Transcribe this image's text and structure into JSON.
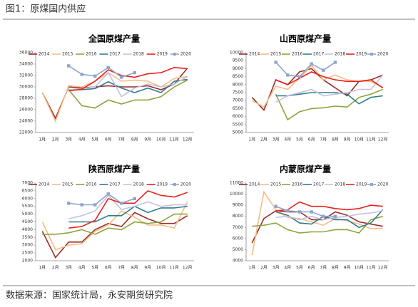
{
  "header": {
    "title": "图1：原煤国内供应"
  },
  "footer": {
    "source": "数据来源：国家统计局，永安期货研究院"
  },
  "chart_data": [
    {
      "type": "line",
      "title": "全国原煤产量",
      "categories": [
        "1月",
        "2月",
        "3月",
        "4月",
        "5月",
        "6月",
        "7月",
        "8月",
        "9月",
        "10月",
        "11月",
        "12月"
      ],
      "ylim": [
        22000,
        36000
      ],
      "yticks": [
        22000,
        24000,
        26000,
        28000,
        30000,
        32000,
        34000,
        36000
      ],
      "series": [
        {
          "name": "2014",
          "color": "#9b2d2a",
          "values": [
            29000,
            24500,
            30000,
            29800,
            30000,
            30200,
            30000,
            30000,
            30200,
            29500,
            30500,
            33300
          ]
        },
        {
          "name": "2015",
          "color": "#f5bd85",
          "values": [
            29000,
            24000,
            30200,
            30000,
            31000,
            32500,
            31000,
            31200,
            31000,
            30000,
            31500,
            31800
          ]
        },
        {
          "name": "2016",
          "color": "#8ea43a",
          "values": [
            null,
            null,
            29500,
            26700,
            26300,
            27700,
            27000,
            27700,
            27700,
            28300,
            30000,
            31200
          ]
        },
        {
          "name": "2017",
          "color": "#2e7d8c",
          "values": [
            null,
            null,
            29500,
            29500,
            29700,
            30900,
            29800,
            29000,
            29800,
            29000,
            31000,
            31300
          ]
        },
        {
          "name": "2018",
          "color": "#c6bfe0",
          "values": [
            null,
            null,
            29500,
            29700,
            30000,
            32500,
            28300,
            29800,
            30500,
            30000,
            30500,
            31800
          ]
        },
        {
          "name": "2019",
          "color": "#e8201c",
          "values": [
            null,
            null,
            29300,
            29600,
            31000,
            33000,
            32000,
            31700,
            32300,
            32500,
            33400,
            33200
          ]
        },
        {
          "name": "2020",
          "color": "#8fa3cc",
          "marker": "square",
          "values": [
            null,
            null,
            33700,
            32200,
            31900,
            33400,
            31700,
            32500,
            null,
            null,
            null,
            null
          ]
        }
      ]
    },
    {
      "type": "line",
      "title": "山西原煤产量",
      "categories": [
        "1月",
        "2月",
        "3月",
        "4月",
        "5月",
        "6月",
        "7月",
        "8月",
        "9月",
        "10月",
        "11月",
        "12月"
      ],
      "ylim": [
        5000,
        10000
      ],
      "yticks": [
        5000,
        5500,
        6000,
        6500,
        7000,
        7500,
        8000,
        8500,
        9000,
        9500,
        10000
      ],
      "series": [
        {
          "name": "2014",
          "color": "#9b2d2a",
          "values": [
            7200,
            6400,
            8300,
            8000,
            8800,
            9000,
            8300,
            7800,
            7300,
            8200,
            8300,
            8600
          ]
        },
        {
          "name": "2015",
          "color": "#f5bd85",
          "values": [
            7000,
            6600,
            7900,
            7700,
            8400,
            9200,
            8300,
            8600,
            8300,
            8200,
            8200,
            7800
          ]
        },
        {
          "name": "2016",
          "color": "#8ea43a",
          "values": [
            null,
            null,
            7400,
            5800,
            6300,
            6500,
            6550,
            6650,
            6600,
            7200,
            7400,
            7700
          ]
        },
        {
          "name": "2017",
          "color": "#2e7d8c",
          "values": [
            null,
            null,
            7300,
            7300,
            7400,
            7500,
            7500,
            7500,
            7400,
            6800,
            7200,
            7300
          ]
        },
        {
          "name": "2018",
          "color": "#c6bfe0",
          "values": [
            null,
            null,
            6900,
            7300,
            7500,
            7700,
            7300,
            7400,
            7500,
            7700,
            7700,
            8600
          ]
        },
        {
          "name": "2019",
          "color": "#e8201c",
          "values": [
            null,
            null,
            8300,
            8000,
            8400,
            8800,
            8500,
            8300,
            8200,
            8200,
            8300,
            7800
          ]
        },
        {
          "name": "2020",
          "color": "#8fa3cc",
          "marker": "square",
          "values": [
            null,
            null,
            9400,
            8600,
            8500,
            9300,
            8900,
            9400,
            null,
            null,
            null,
            null
          ]
        }
      ]
    },
    {
      "type": "line",
      "title": "陕西原煤产量",
      "categories": [
        "1月",
        "2月",
        "3月",
        "4月",
        "5月",
        "6月",
        "7月",
        "8月",
        "9月",
        "10月",
        "11月",
        "12月"
      ],
      "ylim": [
        2000,
        7000
      ],
      "yticks": [
        2000,
        2500,
        3000,
        3500,
        4000,
        4500,
        5000,
        5500,
        6000,
        6500,
        7000
      ],
      "series": [
        {
          "name": "2014",
          "color": "#9b2d2a",
          "values": [
            3900,
            2200,
            3200,
            3200,
            4000,
            4400,
            4200,
            5100,
            4700,
            4400,
            4400,
            4900
          ]
        },
        {
          "name": "2015",
          "color": "#f5bd85",
          "values": [
            4500,
            2700,
            3000,
            3100,
            3900,
            4300,
            5200,
            4800,
            4300,
            4300,
            4100,
            5800
          ]
        },
        {
          "name": "2016",
          "color": "#8ea43a",
          "values": [
            3700,
            3700,
            3800,
            4000,
            3700,
            4100,
            4000,
            4500,
            4400,
            4500,
            5000,
            5000
          ]
        },
        {
          "name": "2017",
          "color": "#2e7d8c",
          "values": [
            null,
            null,
            4500,
            4500,
            4500,
            4900,
            4900,
            5500,
            5100,
            5400,
            5400,
            5500
          ]
        },
        {
          "name": "2018",
          "color": "#c6bfe0",
          "values": [
            null,
            null,
            4700,
            4900,
            5200,
            6200,
            5300,
            5500,
            5800,
            5500,
            5600,
            5600
          ]
        },
        {
          "name": "2019",
          "color": "#e8201c",
          "values": [
            null,
            null,
            4100,
            4200,
            4600,
            6000,
            5700,
            5700,
            6500,
            6200,
            6100,
            6400
          ]
        },
        {
          "name": "2020",
          "color": "#8fa3cc",
          "marker": "square",
          "values": [
            null,
            null,
            5700,
            5600,
            5600,
            6300,
            5700,
            6000,
            null,
            null,
            null,
            null
          ]
        }
      ]
    },
    {
      "type": "line",
      "title": "内蒙原煤产量",
      "categories": [
        "1月",
        "2月",
        "3月",
        "4月",
        "5月",
        "6月",
        "7月",
        "8月",
        "9月",
        "10月",
        "11月",
        "12月"
      ],
      "ylim": [
        4000,
        11000
      ],
      "yticks": [
        4000,
        5000,
        6000,
        7000,
        8000,
        9000,
        10000,
        11000
      ],
      "series": [
        {
          "name": "2014",
          "color": "#9b2d2a",
          "values": [
            5600,
            7800,
            8500,
            8400,
            8400,
            7700,
            7700,
            8400,
            8100,
            7500,
            7300,
            7100
          ]
        },
        {
          "name": "2015",
          "color": "#f5bd85",
          "values": [
            4500,
            10200,
            8600,
            7900,
            7800,
            7500,
            7200,
            7800,
            7600,
            7300,
            6900,
            6900
          ]
        },
        {
          "name": "2016",
          "color": "#8ea43a",
          "values": [
            7100,
            7200,
            7400,
            6800,
            6500,
            6600,
            6600,
            6800,
            6800,
            6500,
            7700,
            8000
          ]
        },
        {
          "name": "2017",
          "color": "#2e7d8c",
          "values": [
            null,
            null,
            8400,
            8100,
            7400,
            7300,
            8000,
            7700,
            7700,
            7000,
            7400,
            8600
          ]
        },
        {
          "name": "2018",
          "color": "#c6bfe0",
          "values": [
            null,
            null,
            7900,
            8000,
            7700,
            8000,
            7700,
            7900,
            8000,
            8200,
            8300,
            8500
          ]
        },
        {
          "name": "2019",
          "color": "#e8201c",
          "values": [
            null,
            null,
            8500,
            8600,
            9300,
            8900,
            8900,
            8700,
            8600,
            8700,
            9000,
            8900
          ]
        },
        {
          "name": "2020",
          "color": "#8fa3cc",
          "marker": "square",
          "values": [
            null,
            null,
            8900,
            8500,
            8400,
            8400,
            8000,
            8000,
            null,
            null,
            null,
            null
          ]
        }
      ]
    }
  ]
}
